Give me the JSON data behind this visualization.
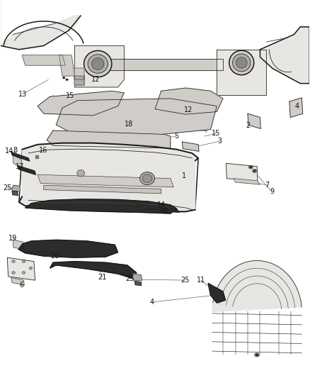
{
  "background_color": "#ffffff",
  "line_color": "#1a1a1a",
  "label_color": "#111111",
  "figsize": [
    4.38,
    5.33
  ],
  "dpi": 100,
  "label_fs": 7.0,
  "lw_main": 1.1,
  "lw_thin": 0.55,
  "lw_detail": 0.35,
  "gray_fill": "#e8e6e2",
  "gray_mid": "#d0cdc8",
  "gray_dark": "#b0ada8",
  "black_part": "#2c2c2c",
  "white_bg": "#f5f4f2"
}
